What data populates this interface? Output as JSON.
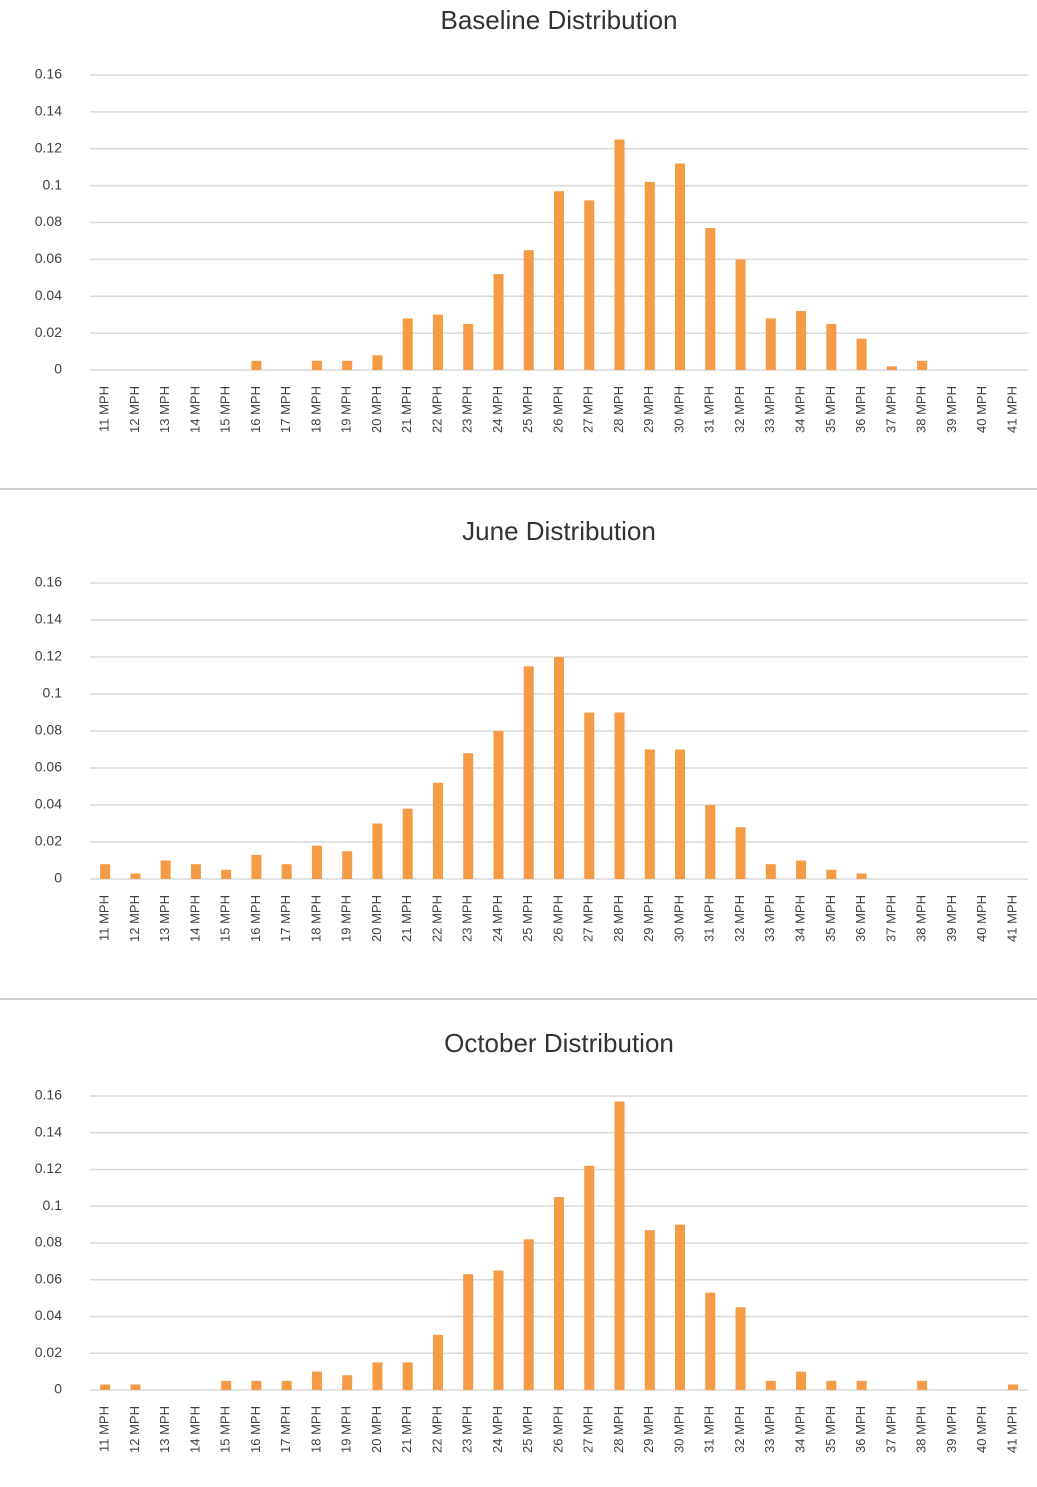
{
  "chart_data": [
    {
      "type": "bar",
      "title": "Baseline Distribution",
      "color": "#f59a45",
      "grid": true,
      "categories": [
        "11 MPH",
        "12 MPH",
        "13 MPH",
        "14 MPH",
        "15 MPH",
        "16 MPH",
        "17 MPH",
        "18 MPH",
        "19 MPH",
        "20 MPH",
        "21 MPH",
        "22 MPH",
        "23 MPH",
        "24 MPH",
        "25 MPH",
        "26 MPH",
        "27 MPH",
        "28 MPH",
        "29 MPH",
        "30 MPH",
        "31 MPH",
        "32 MPH",
        "33 MPH",
        "34 MPH",
        "35 MPH",
        "36 MPH",
        "37 MPH",
        "38 MPH",
        "39 MPH",
        "40 MPH",
        "41 MPH"
      ],
      "values": [
        0,
        0,
        0,
        0,
        0,
        0.005,
        0,
        0.005,
        0.005,
        0.008,
        0.028,
        0.03,
        0.025,
        0.052,
        0.065,
        0.097,
        0.092,
        0.125,
        0.102,
        0.112,
        0.077,
        0.06,
        0.028,
        0.032,
        0.025,
        0.017,
        0.002,
        0.005,
        0,
        0,
        0
      ],
      "ylim": [
        0,
        0.16
      ],
      "yticks": [
        0,
        0.02,
        0.04,
        0.06,
        0.08,
        0.1,
        0.12,
        0.14,
        0.16
      ]
    },
    {
      "type": "bar",
      "title": "June Distribution",
      "color": "#f59a45",
      "grid": true,
      "categories": [
        "11 MPH",
        "12 MPH",
        "13 MPH",
        "14 MPH",
        "15 MPH",
        "16 MPH",
        "17 MPH",
        "18 MPH",
        "19 MPH",
        "20 MPH",
        "21 MPH",
        "22 MPH",
        "23 MPH",
        "24 MPH",
        "25 MPH",
        "26 MPH",
        "27 MPH",
        "28 MPH",
        "29 MPH",
        "30 MPH",
        "31 MPH",
        "32 MPH",
        "33 MPH",
        "34 MPH",
        "35 MPH",
        "36 MPH",
        "37 MPH",
        "38 MPH",
        "39 MPH",
        "40 MPH",
        "41 MPH"
      ],
      "values": [
        0.008,
        0.003,
        0.01,
        0.008,
        0.005,
        0.013,
        0.008,
        0.018,
        0.015,
        0.03,
        0.038,
        0.052,
        0.068,
        0.08,
        0.115,
        0.12,
        0.09,
        0.09,
        0.07,
        0.07,
        0.04,
        0.028,
        0.008,
        0.01,
        0.005,
        0.003,
        0,
        0,
        0,
        0,
        0
      ],
      "ylim": [
        0,
        0.16
      ],
      "yticks": [
        0,
        0.02,
        0.04,
        0.06,
        0.08,
        0.1,
        0.12,
        0.14,
        0.16
      ]
    },
    {
      "type": "bar",
      "title": "October Distribution",
      "color": "#f59a45",
      "grid": true,
      "categories": [
        "11 MPH",
        "12 MPH",
        "13 MPH",
        "14 MPH",
        "15 MPH",
        "16 MPH",
        "17 MPH",
        "18 MPH",
        "19 MPH",
        "20 MPH",
        "21 MPH",
        "22 MPH",
        "23 MPH",
        "24 MPH",
        "25 MPH",
        "26 MPH",
        "27 MPH",
        "28 MPH",
        "29 MPH",
        "30 MPH",
        "31 MPH",
        "32 MPH",
        "33 MPH",
        "34 MPH",
        "35 MPH",
        "36 MPH",
        "37 MPH",
        "38 MPH",
        "39 MPH",
        "40 MPH",
        "41 MPH"
      ],
      "values": [
        0.003,
        0.003,
        0,
        0,
        0.005,
        0.005,
        0.005,
        0.01,
        0.008,
        0.015,
        0.015,
        0.03,
        0.063,
        0.065,
        0.082,
        0.105,
        0.122,
        0.157,
        0.087,
        0.09,
        0.053,
        0.045,
        0.005,
        0.01,
        0.005,
        0.005,
        0,
        0.005,
        0,
        0,
        0.003
      ],
      "ylim": [
        0,
        0.16
      ],
      "yticks": [
        0,
        0.02,
        0.04,
        0.06,
        0.08,
        0.1,
        0.12,
        0.14,
        0.16
      ]
    }
  ]
}
